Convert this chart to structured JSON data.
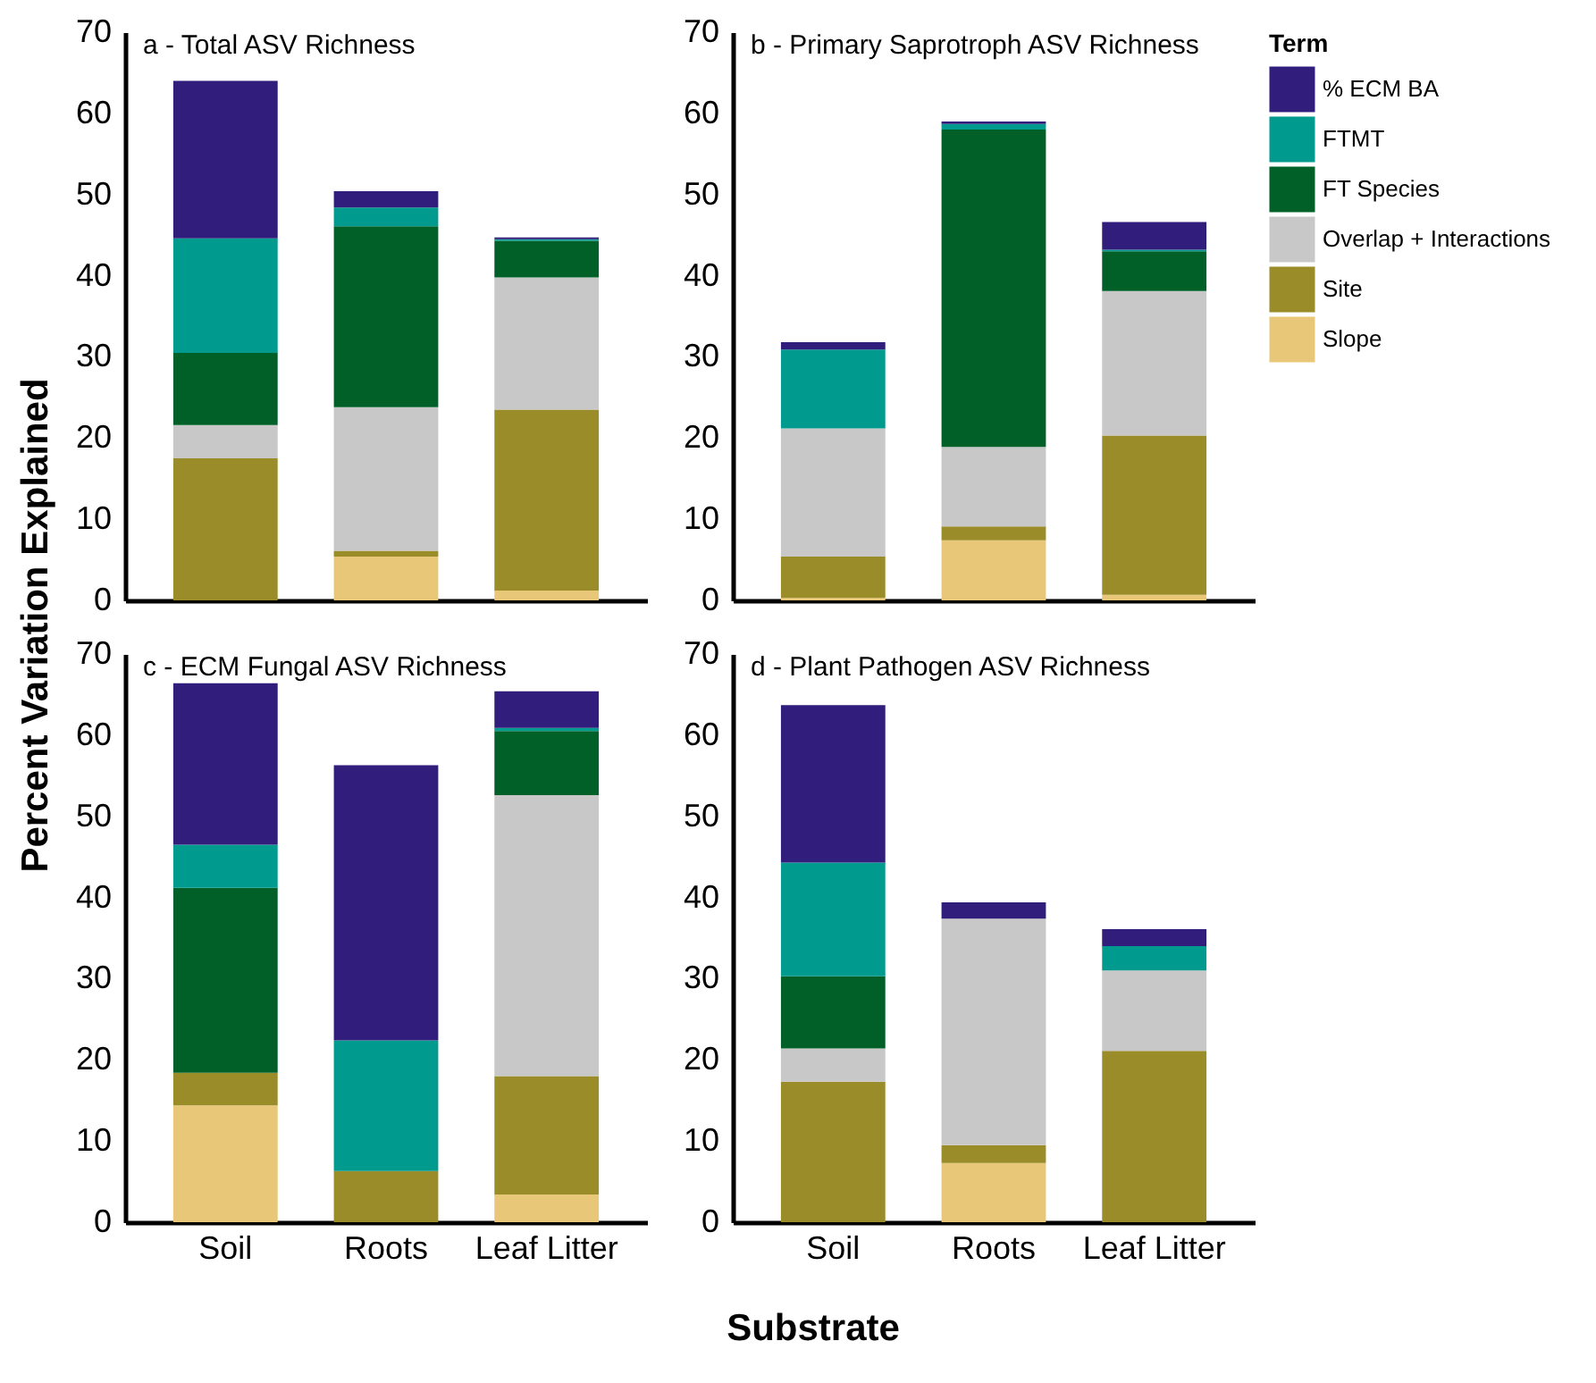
{
  "chart_data": [
    {
      "type": "bar",
      "title": "a - Total ASV Richness",
      "xlabel": "Substrate",
      "ylabel": "Percent Variation Explained",
      "categories": [
        null,
        null,
        null
      ],
      "stacked": true,
      "ylim": [
        0,
        70
      ],
      "yticks": [
        0,
        10,
        20,
        30,
        40,
        50,
        60,
        70
      ],
      "tick_labels": "y",
      "series": [
        {
          "color": "#e8c878",
          "values": [
            0,
            5.4,
            1.2
          ]
        },
        {
          "color": "#9a8c28",
          "values": [
            17.5,
            0.7,
            22.3
          ]
        },
        {
          "color": "#c8c8c8",
          "values": [
            4.1,
            17.7,
            16.3
          ]
        },
        {
          "color": "#006028",
          "values": [
            8.9,
            22.3,
            4.5
          ]
        },
        {
          "color": "#009a8f",
          "values": [
            14.1,
            2.3,
            0.2
          ]
        },
        {
          "color": "#311e7c",
          "values": [
            19.4,
            2.0,
            0.2
          ]
        }
      ]
    },
    {
      "type": "bar",
      "title": "b - Primary Saprotroph ASV Richness",
      "categories": [
        null,
        null,
        null
      ],
      "stacked": true,
      "ylim": [
        0,
        70
      ],
      "yticks": [
        0,
        10,
        20,
        30,
        40,
        50,
        60,
        70
      ],
      "tick_labels": "y",
      "legend": "right",
      "legend_title": "Term",
      "series": [
        {
          "name": "Slope",
          "color": "#e8c878",
          "values": [
            0.3,
            7.4,
            0.7
          ]
        },
        {
          "name": "Site",
          "color": "#9a8c28",
          "values": [
            5.1,
            1.7,
            19.6
          ]
        },
        {
          "name": "Overlap + Interactions",
          "color": "#c8c8c8",
          "values": [
            15.8,
            9.8,
            17.8
          ]
        },
        {
          "name": "FT Species",
          "color": "#006028",
          "values": [
            0,
            39.1,
            4.9
          ]
        },
        {
          "name": "FTMT",
          "color": "#009a8f",
          "values": [
            9.7,
            0.7,
            0.2
          ]
        },
        {
          "name": "% ECM BA",
          "color": "#311e7c",
          "values": [
            0.9,
            0.3,
            3.4
          ]
        }
      ]
    },
    {
      "type": "bar",
      "title": "c - ECM Fungal ASV Richness",
      "categories": [
        "Soil",
        "Roots",
        "Leaf Litter"
      ],
      "stacked": true,
      "ylim": [
        0,
        70
      ],
      "yticks": [
        0,
        10,
        20,
        30,
        40,
        50,
        60,
        70
      ],
      "series": [
        {
          "color": "#e8c878",
          "values": [
            14.4,
            0,
            3.4
          ]
        },
        {
          "color": "#9a8c28",
          "values": [
            4.0,
            6.3,
            14.6
          ]
        },
        {
          "color": "#c8c8c8",
          "values": [
            0,
            0,
            34.6
          ]
        },
        {
          "color": "#006028",
          "values": [
            22.8,
            0,
            7.9
          ]
        },
        {
          "color": "#009a8f",
          "values": [
            5.3,
            16.1,
            0.4
          ]
        },
        {
          "color": "#311e7c",
          "values": [
            19.9,
            33.9,
            4.5
          ]
        }
      ]
    },
    {
      "type": "bar",
      "title": "d - Plant Pathogen ASV Richness",
      "categories": [
        "Soil",
        "Roots",
        "Leaf Litter"
      ],
      "stacked": true,
      "ylim": [
        0,
        70
      ],
      "yticks": [
        0,
        10,
        20,
        30,
        40,
        50,
        60,
        70
      ],
      "series": [
        {
          "color": "#e8c878",
          "values": [
            0,
            7.3,
            0
          ]
        },
        {
          "color": "#9a8c28",
          "values": [
            17.3,
            2.2,
            21.1
          ]
        },
        {
          "color": "#c8c8c8",
          "values": [
            4.1,
            27.9,
            9.9
          ]
        },
        {
          "color": "#006028",
          "values": [
            8.9,
            0,
            0
          ]
        },
        {
          "color": "#009a8f",
          "values": [
            14.0,
            0,
            3.0
          ]
        },
        {
          "color": "#311e7c",
          "values": [
            19.4,
            2.0,
            2.1
          ]
        }
      ]
    }
  ]
}
